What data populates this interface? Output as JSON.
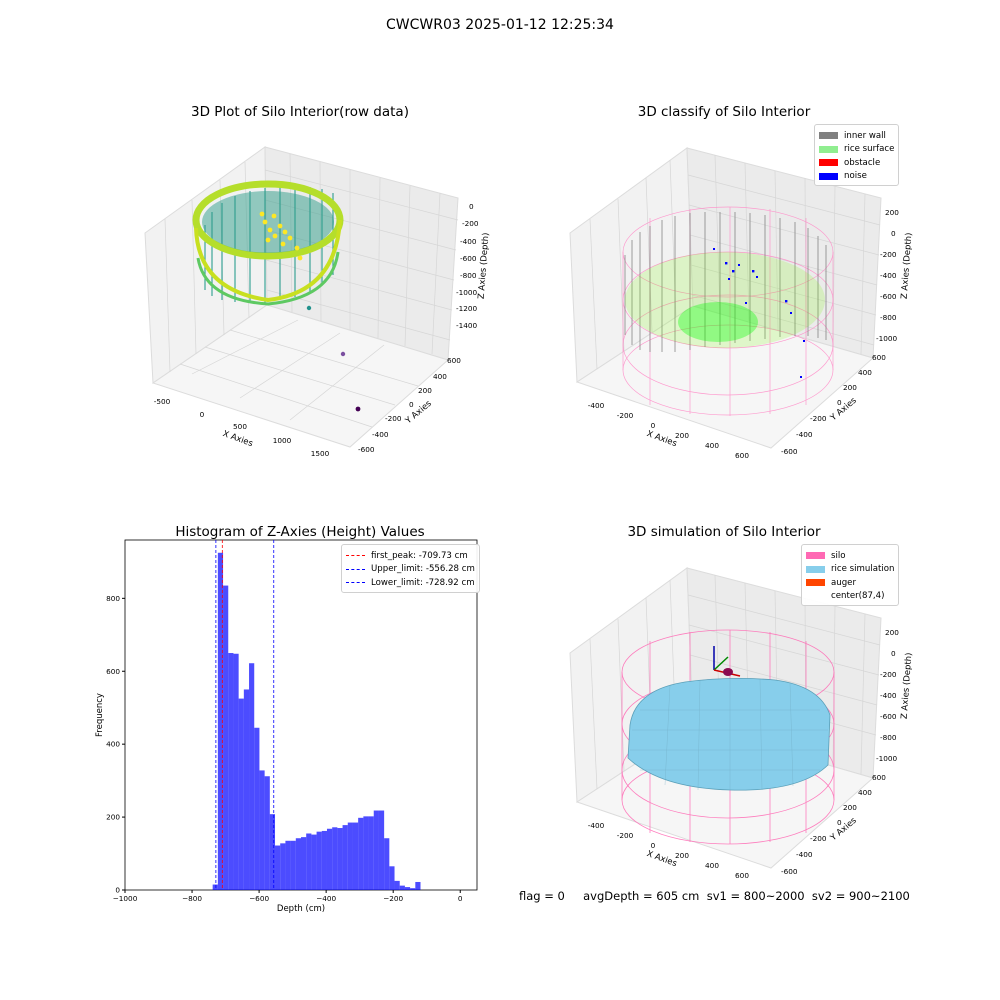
{
  "suptitle": "CWCWR03 2025-01-12 12:25:34",
  "panels": {
    "raw": {
      "title": "3D Plot of Silo Interior(row data)",
      "xlabel": "X Axies",
      "ylabel": "Y Axies",
      "zlabel": "Z Axies (Depth)",
      "xticks": [
        "-500",
        "0",
        "500",
        "1000",
        "1500"
      ],
      "yticks": [
        "600",
        "400",
        "200",
        "0",
        "-200",
        "-400",
        "-600"
      ],
      "zticks": [
        "0",
        "-200",
        "-400",
        "-600",
        "-800",
        "-1000",
        "-1200",
        "-1400"
      ]
    },
    "classify": {
      "title": "3D classify of Silo Interior",
      "xlabel": "X Axies",
      "ylabel": "Y Axies",
      "zlabel": "Z Axies (Depth)",
      "xticks": [
        "-400",
        "-200",
        "0",
        "200",
        "400",
        "600"
      ],
      "yticks": [
        "600",
        "400",
        "200",
        "0",
        "-200",
        "-400",
        "-600"
      ],
      "zticks": [
        "200",
        "0",
        "-200",
        "-400",
        "-600",
        "-800",
        "-1000"
      ],
      "legend": [
        {
          "label": "inner wall",
          "color": "#808080"
        },
        {
          "label": "rice surface",
          "color": "#90ee90"
        },
        {
          "label": "obstacle",
          "color": "#ff0000"
        },
        {
          "label": "noise",
          "color": "#0000ff"
        }
      ]
    },
    "simulation": {
      "title": "3D simulation of Silo Interior",
      "xlabel": "X Axies",
      "ylabel": "Y Axies",
      "zlabel": "Z Axies (Depth)",
      "xticks": [
        "-400",
        "-200",
        "0",
        "200",
        "400",
        "600"
      ],
      "yticks": [
        "600",
        "400",
        "200",
        "0",
        "-200",
        "-400",
        "-600"
      ],
      "zticks": [
        "200",
        "0",
        "-200",
        "-400",
        "-600",
        "-800",
        "-1000"
      ],
      "legend": [
        {
          "label": "silo",
          "color": "#ff69b4"
        },
        {
          "label": "rice simulation",
          "color": "#87ceeb"
        },
        {
          "label": "auger",
          "color": "#ff4500"
        },
        {
          "label": "center(87,4)",
          "color": ""
        }
      ]
    }
  },
  "chart_data": {
    "type": "bar",
    "title": "Histogram of Z-Axies (Height) Values",
    "xlabel": "Depth (cm)",
    "ylabel": "Frequency",
    "xlim": [
      -1000,
      50
    ],
    "ylim": [
      0,
      960
    ],
    "xticks": [
      -1000,
      -800,
      -600,
      -400,
      -200,
      0
    ],
    "yticks": [
      0,
      200,
      400,
      600,
      800
    ],
    "bin_width": 15.5,
    "bin_start": -738.5,
    "values": [
      15,
      925,
      835,
      650,
      648,
      525,
      550,
      622,
      445,
      328,
      312,
      208,
      122,
      128,
      135,
      135,
      142,
      145,
      155,
      152,
      160,
      162,
      168,
      172,
      170,
      178,
      185,
      185,
      198,
      202,
      202,
      218,
      218,
      142,
      65,
      25,
      12,
      8,
      5,
      22
    ],
    "bar_color": "#0000ff",
    "lines": [
      {
        "x": -709.73,
        "color": "#ff0000",
        "label": "first_peak: -709.73 cm"
      },
      {
        "x": -556.28,
        "color": "#0000ff",
        "label": "Upper_limit: -556.28 cm"
      },
      {
        "x": -728.92,
        "color": "#0000ff",
        "label": "Lower_limit: -728.92 cm"
      }
    ],
    "legend_position": "upper right"
  },
  "footer": "flag = 0     avgDepth = 605 cm  sv1 = 800~2000  sv2 = 900~2100"
}
